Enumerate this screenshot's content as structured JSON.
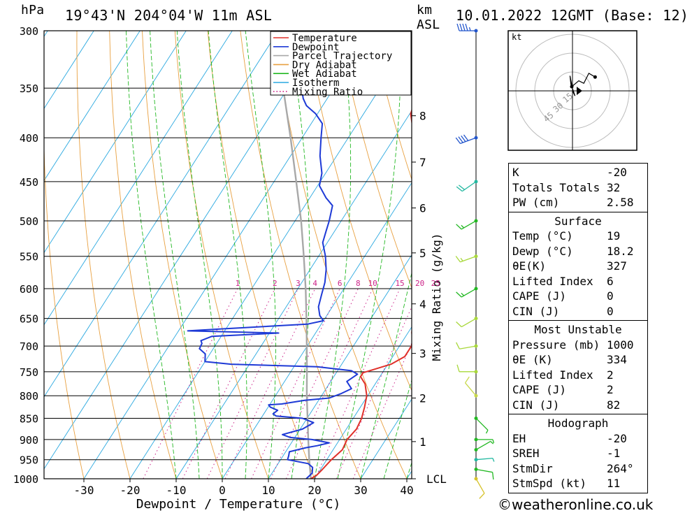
{
  "header": {
    "pressure_unit": "hPa",
    "location": "19°43'N 204°04'W 11m ASL",
    "height_unit": "km",
    "height_ref": "ASL",
    "datetime": "10.01.2022 12GMT (Base: 12)"
  },
  "chart_data": {
    "type": "line",
    "xlabel": "Dewpoint / Temperature (°C)",
    "ylabel": "hPa",
    "right_axis_label": "km ASL",
    "mixing_ratio_axis_label": "Mixing Ratio (g/kg)",
    "x_ticks": [
      -30,
      -20,
      -10,
      0,
      10,
      20,
      30,
      40
    ],
    "xlim": [
      -40,
      40
    ],
    "pressure_ticks": [
      300,
      350,
      400,
      450,
      500,
      550,
      600,
      650,
      700,
      750,
      800,
      850,
      900,
      950,
      1000
    ],
    "ylim_hPa": [
      1000,
      300
    ],
    "y_scale": "log-pressure",
    "height_ticks": [
      {
        "label": "8",
        "p": 377
      },
      {
        "label": "7",
        "p": 427
      },
      {
        "label": "6",
        "p": 483
      },
      {
        "label": "5",
        "p": 545
      },
      {
        "label": "4",
        "p": 625
      },
      {
        "label": "3",
        "p": 714
      },
      {
        "label": "2",
        "p": 805
      },
      {
        "label": "1",
        "p": 905
      },
      {
        "label": "LCL",
        "p": 1000
      }
    ],
    "mixing_ratio_labels": [
      "1",
      "2",
      "3",
      "4",
      "6",
      "8",
      "10",
      "15",
      "20",
      "25"
    ],
    "mixing_ratio_values": [
      1,
      2,
      3,
      4,
      6,
      8,
      10,
      15,
      20,
      25
    ],
    "legend": [
      {
        "name": "Temperature",
        "color": "#e0302a",
        "style": "solid"
      },
      {
        "name": "Dewpoint",
        "color": "#1e3ad6",
        "style": "solid"
      },
      {
        "name": "Parcel Trajectory",
        "color": "#a8a8a8",
        "style": "solid"
      },
      {
        "name": "Dry Adiabat",
        "color": "#e8a040",
        "style": "solid"
      },
      {
        "name": "Wet Adiabat",
        "color": "#22b822",
        "style": "solid"
      },
      {
        "name": "Isotherm",
        "color": "#2aa8e0",
        "style": "solid"
      },
      {
        "name": "Mixing Ratio",
        "color": "#cc2288",
        "style": "dotted"
      }
    ],
    "legend_position": "top-right",
    "series": [
      {
        "name": "Temperature",
        "points": [
          [
            1000,
            19.2
          ],
          [
            990,
            20.0
          ],
          [
            975,
            20.4
          ],
          [
            950,
            21.0
          ],
          [
            925,
            22.0
          ],
          [
            900,
            21.6
          ],
          [
            875,
            22.2
          ],
          [
            850,
            21.8
          ],
          [
            825,
            20.9
          ],
          [
            800,
            19.8
          ],
          [
            775,
            17.8
          ],
          [
            760,
            15.8
          ],
          [
            752,
            15.8
          ],
          [
            745,
            17.8
          ],
          [
            735,
            20.7
          ],
          [
            720,
            22.6
          ],
          [
            700,
            22.6
          ],
          [
            690,
            22.1
          ],
          [
            675,
            20.8
          ],
          [
            660,
            19.9
          ],
          [
            640,
            18.5
          ],
          [
            620,
            17.6
          ],
          [
            600,
            15.9
          ],
          [
            580,
            13.9
          ],
          [
            560,
            12.7
          ],
          [
            540,
            11.5
          ],
          [
            520,
            9.5
          ],
          [
            500,
            7.0
          ],
          [
            470,
            3.5
          ],
          [
            450,
            0.8
          ],
          [
            430,
            -1.6
          ],
          [
            400,
            -5.7
          ],
          [
            375,
            -9.8
          ],
          [
            360,
            -10.8
          ],
          [
            350,
            -11.8
          ],
          [
            320,
            -16.2
          ],
          [
            300,
            -19.2
          ]
        ]
      },
      {
        "name": "Dewpoint",
        "points": [
          [
            1000,
            18.2
          ],
          [
            985,
            18.7
          ],
          [
            970,
            18.0
          ],
          [
            960,
            16.5
          ],
          [
            950,
            11.5
          ],
          [
            940,
            11.2
          ],
          [
            930,
            10.8
          ],
          [
            920,
            13.8
          ],
          [
            915,
            16.0
          ],
          [
            908,
            18.2
          ],
          [
            900,
            14.0
          ],
          [
            895,
            9.0
          ],
          [
            888,
            6.9
          ],
          [
            875,
            10.5
          ],
          [
            860,
            12.0
          ],
          [
            850,
            9.0
          ],
          [
            845,
            3.0
          ],
          [
            840,
            2.0
          ],
          [
            832,
            2.5
          ],
          [
            825,
            0.5
          ],
          [
            820,
            -0.2
          ],
          [
            818,
            2.5
          ],
          [
            810,
            7.0
          ],
          [
            805,
            12.0
          ],
          [
            795,
            14.0
          ],
          [
            785,
            15.5
          ],
          [
            770,
            13.5
          ],
          [
            755,
            14.8
          ],
          [
            748,
            13.0
          ],
          [
            740,
            5.0
          ],
          [
            735,
            -14.0
          ],
          [
            730,
            -20.0
          ],
          [
            715,
            -21.0
          ],
          [
            705,
            -23.0
          ],
          [
            695,
            -23.2
          ],
          [
            690,
            -23.8
          ],
          [
            682,
            -22.0
          ],
          [
            676,
            -8.0
          ],
          [
            672,
            -28.0
          ],
          [
            668,
            -20.0
          ],
          [
            660,
            -3.0
          ],
          [
            654,
            0.0
          ],
          [
            645,
            -1.5
          ],
          [
            630,
            -3.0
          ],
          [
            610,
            -4.0
          ],
          [
            590,
            -5.0
          ],
          [
            570,
            -6.5
          ],
          [
            550,
            -8.5
          ],
          [
            530,
            -11.0
          ],
          [
            515,
            -11.8
          ],
          [
            500,
            -12.6
          ],
          [
            480,
            -14.0
          ],
          [
            470,
            -16.5
          ],
          [
            455,
            -19.6
          ],
          [
            440,
            -20.8
          ],
          [
            420,
            -23.6
          ],
          [
            400,
            -25.9
          ],
          [
            385,
            -27.6
          ],
          [
            375,
            -30.4
          ],
          [
            367,
            -33.5
          ],
          [
            360,
            -35.2
          ],
          [
            350,
            -37.0
          ],
          [
            340,
            -36.2
          ],
          [
            325,
            -35.1
          ],
          [
            310,
            -33.5
          ],
          [
            300,
            -32.7
          ]
        ]
      },
      {
        "name": "Parcel Trajectory",
        "points": [
          [
            1000,
            19.2
          ],
          [
            950,
            16.2
          ],
          [
            900,
            13.2
          ],
          [
            850,
            10.1
          ],
          [
            800,
            6.8
          ],
          [
            750,
            3.5
          ],
          [
            700,
            -0.1
          ],
          [
            650,
            -4.0
          ],
          [
            600,
            -8.3
          ],
          [
            550,
            -13.2
          ],
          [
            500,
            -18.7
          ],
          [
            450,
            -25.2
          ],
          [
            400,
            -32.5
          ],
          [
            350,
            -41.0
          ],
          [
            300,
            -51.0
          ]
        ]
      }
    ],
    "wind_profile": [
      {
        "p": 1000,
        "dir": 150,
        "kt": 10,
        "color": "#d6c22a"
      },
      {
        "p": 975,
        "dir": 100,
        "kt": 10,
        "color": "#22b822"
      },
      {
        "p": 950,
        "dir": 85,
        "kt": 5,
        "color": "#22b8a0"
      },
      {
        "p": 925,
        "dir": 60,
        "kt": 5,
        "color": "#22b822"
      },
      {
        "p": 900,
        "dir": 90,
        "kt": 5,
        "color": "#22b822"
      },
      {
        "p": 850,
        "dir": 135,
        "kt": 5,
        "color": "#22b822"
      },
      {
        "p": 800,
        "dir": 320,
        "kt": 10,
        "color": "#c8d84a"
      },
      {
        "p": 750,
        "dir": 270,
        "kt": 10,
        "color": "#a8d83a"
      },
      {
        "p": 700,
        "dir": 260,
        "kt": 10,
        "color": "#a8d83a"
      },
      {
        "p": 650,
        "dir": 240,
        "kt": 10,
        "color": "#a8d83a"
      },
      {
        "p": 600,
        "dir": 240,
        "kt": 15,
        "color": "#22b822"
      },
      {
        "p": 550,
        "dir": 250,
        "kt": 15,
        "color": "#a8d83a"
      },
      {
        "p": 500,
        "dir": 240,
        "kt": 15,
        "color": "#22b822"
      },
      {
        "p": 450,
        "dir": 235,
        "kt": 20,
        "color": "#22b8a0"
      },
      {
        "p": 400,
        "dir": 250,
        "kt": 40,
        "color": "#2255cc"
      },
      {
        "p": 300,
        "dir": 270,
        "kt": 45,
        "color": "#2255cc"
      }
    ],
    "hodograph": {
      "unit": "kt",
      "ring_labels": [
        "15",
        "30",
        "45"
      ],
      "points": [
        [
          0,
          0
        ],
        [
          2,
          -4
        ],
        [
          0,
          2
        ],
        [
          -2,
          12
        ],
        [
          -1,
          3
        ],
        [
          5,
          8
        ],
        [
          9,
          6
        ],
        [
          13,
          14
        ],
        [
          18,
          11
        ]
      ]
    }
  },
  "indices": {
    "general": [
      {
        "label": "K",
        "value": "-20"
      },
      {
        "label": "Totals Totals",
        "value": "32"
      },
      {
        "label": "PW (cm)",
        "value": "2.58"
      }
    ],
    "surface_title": "Surface",
    "surface": [
      {
        "label": "Temp (°C)",
        "value": "19"
      },
      {
        "label": "Dewp (°C)",
        "value": "18.2"
      },
      {
        "label": "θE(K)",
        "value": "327"
      },
      {
        "label": "Lifted Index",
        "value": "6"
      },
      {
        "label": "CAPE (J)",
        "value": "0"
      },
      {
        "label": "CIN (J)",
        "value": "0"
      }
    ],
    "most_unstable_title": "Most Unstable",
    "most_unstable": [
      {
        "label": "Pressure (mb)",
        "value": "1000"
      },
      {
        "label": "θE (K)",
        "value": "334"
      },
      {
        "label": "Lifted Index",
        "value": "2"
      },
      {
        "label": "CAPE (J)",
        "value": "2"
      },
      {
        "label": "CIN (J)",
        "value": "82"
      }
    ],
    "hodograph_title": "Hodograph",
    "hodograph": [
      {
        "label": "EH",
        "value": "-20"
      },
      {
        "label": "SREH",
        "value": "-1"
      },
      {
        "label": "StmDir",
        "value": "264°"
      },
      {
        "label": "StmSpd (kt)",
        "value": "11"
      }
    ]
  },
  "credit": "©weatheronline.co.uk"
}
